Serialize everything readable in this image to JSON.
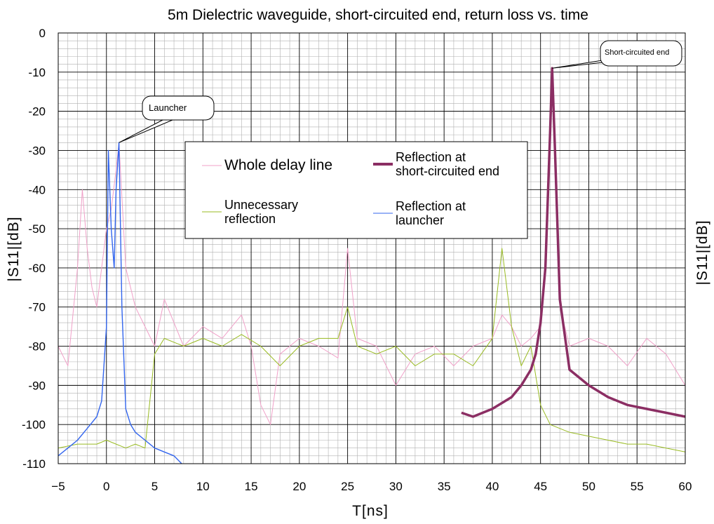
{
  "chart_data": {
    "type": "line",
    "title": "5m Dielectric waveguide, short-circuited end, return loss vs. time",
    "xlabel": "T[ns]",
    "ylabel": "|S11|[dB]",
    "ylabel_right": "|S11|[dB]",
    "xlim": [
      -5,
      60
    ],
    "ylim": [
      -110,
      0
    ],
    "x_ticks": [
      -5,
      0,
      5,
      10,
      15,
      20,
      25,
      30,
      35,
      40,
      45,
      50,
      55,
      60
    ],
    "x_tick_labels": [
      "−5",
      "0",
      "5",
      "10",
      "15",
      "20",
      "25",
      "30",
      "35",
      "40",
      "45",
      "50",
      "55",
      "60"
    ],
    "y_ticks": [
      0,
      -10,
      -20,
      -30,
      -40,
      -50,
      -60,
      -70,
      -80,
      -90,
      -100,
      -110
    ],
    "y_tick_labels": [
      "0",
      "-10",
      "-20",
      "-30",
      "-40",
      "-50",
      "-60",
      "-70",
      "-80",
      "-90",
      "-100",
      "-110"
    ],
    "grid": true,
    "legend_position": "top-center",
    "series": [
      {
        "name": "Whole delay line",
        "color": "#f0a0c8",
        "x": [
          -5,
          -4,
          -3,
          -2.5,
          -2,
          -1.5,
          -1,
          -0.5,
          0,
          0.5,
          1,
          1.3,
          2,
          3,
          4,
          5,
          6,
          8,
          10,
          12,
          14,
          15,
          16,
          17,
          18,
          20,
          22,
          24,
          25,
          26,
          28,
          30,
          32,
          34,
          36,
          38,
          40,
          41,
          42,
          43,
          44,
          45,
          45.5,
          46,
          46.2,
          46.5,
          47,
          48,
          50,
          52,
          54,
          56,
          58,
          60
        ],
        "y": [
          -80,
          -85,
          -60,
          -40,
          -55,
          -65,
          -70,
          -60,
          -50,
          -45,
          -35,
          -28,
          -60,
          -70,
          -75,
          -80,
          -68,
          -80,
          -75,
          -78,
          -72,
          -80,
          -95,
          -100,
          -82,
          -78,
          -80,
          -83,
          -55,
          -78,
          -80,
          -90,
          -82,
          -80,
          -85,
          -80,
          -78,
          -72,
          -75,
          -80,
          -78,
          -75,
          -60,
          -20,
          -9,
          -30,
          -70,
          -80,
          -78,
          -80,
          -85,
          -78,
          -82,
          -90
        ]
      },
      {
        "name": "Unnecessary reflection",
        "color": "#99bb22",
        "x": [
          -5,
          -3,
          -1,
          0,
          1,
          2,
          3,
          4,
          5,
          6,
          8,
          10,
          12,
          14,
          16,
          18,
          20,
          22,
          24,
          25,
          26,
          28,
          30,
          32,
          34,
          36,
          38,
          40,
          41,
          42,
          43,
          44,
          45,
          46,
          47,
          48,
          50,
          52,
          54,
          56,
          58,
          60
        ],
        "y": [
          -106,
          -105,
          -105,
          -104,
          -105,
          -106,
          -105,
          -106,
          -82,
          -78,
          -80,
          -78,
          -80,
          -77,
          -80,
          -85,
          -80,
          -78,
          -78,
          -70,
          -80,
          -82,
          -80,
          -85,
          -82,
          -82,
          -85,
          -78,
          -55,
          -75,
          -85,
          -80,
          -95,
          -100,
          -101,
          -102,
          -103,
          -104,
          -105,
          -105,
          -106,
          -107
        ]
      },
      {
        "name": "Reflection at short-circuited end",
        "color": "#8b2e63",
        "x": [
          36.8,
          38,
          40,
          42,
          43,
          44,
          44.5,
          45,
          45.5,
          46,
          46.2,
          46.5,
          47,
          48,
          50,
          52,
          54,
          56,
          58,
          60
        ],
        "y": [
          -97,
          -98,
          -96,
          -93,
          -90,
          -86,
          -82,
          -74,
          -60,
          -25,
          -9,
          -30,
          -68,
          -86,
          -90,
          -93,
          -95,
          -96,
          -97,
          -98
        ]
      },
      {
        "name": "Reflection at launcher",
        "color": "#3366ee",
        "x": [
          -5,
          -4,
          -3,
          -2,
          -1,
          -0.5,
          0,
          0.2,
          0.5,
          0.8,
          1,
          1.3,
          1.6,
          2,
          2.5,
          3,
          4,
          5,
          6,
          7,
          7.8
        ],
        "y": [
          -108,
          -106,
          -104,
          -101,
          -98,
          -94,
          -75,
          -30,
          -50,
          -60,
          -40,
          -28,
          -70,
          -96,
          -100,
          -102,
          -104,
          -106,
          -107,
          -108,
          -110
        ]
      }
    ],
    "annotations": [
      {
        "text": "Launcher",
        "x": 1.3,
        "y": -28
      },
      {
        "text": "Short-circuited end",
        "x": 46.2,
        "y": -9
      }
    ]
  }
}
